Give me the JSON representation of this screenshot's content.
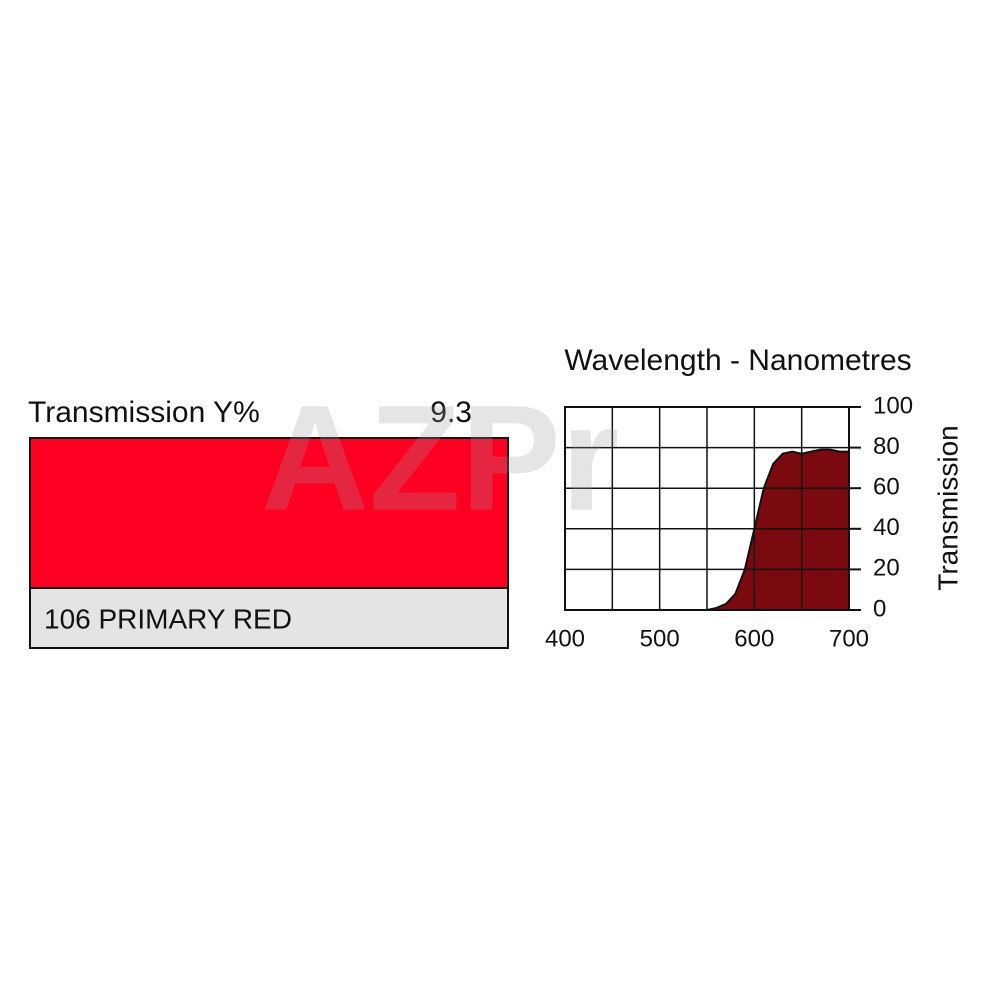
{
  "swatch": {
    "label": "Transmission Y%",
    "value": 9.3,
    "name": "106 PRIMARY RED",
    "color": "#ff0022"
  },
  "watermark": "AZPr",
  "chart_data": {
    "type": "area",
    "title": "Wavelength - Nanometres",
    "y_label": "Transmission",
    "x": [
      400,
      450,
      500,
      550,
      560,
      570,
      580,
      590,
      600,
      610,
      620,
      630,
      640,
      650,
      660,
      670,
      680,
      690,
      700
    ],
    "values": [
      0,
      0,
      0,
      0,
      1,
      3,
      8,
      20,
      40,
      60,
      72,
      77,
      78,
      77,
      78,
      79,
      79,
      78,
      78
    ],
    "xlim": [
      400,
      700
    ],
    "xticks": [
      400,
      500,
      600,
      700
    ],
    "xgrid": [
      400,
      450,
      500,
      550,
      600,
      650,
      700
    ],
    "ylim": [
      0,
      100
    ],
    "yticks": [
      0,
      20,
      40,
      60,
      80,
      100
    ],
    "grid": true
  }
}
